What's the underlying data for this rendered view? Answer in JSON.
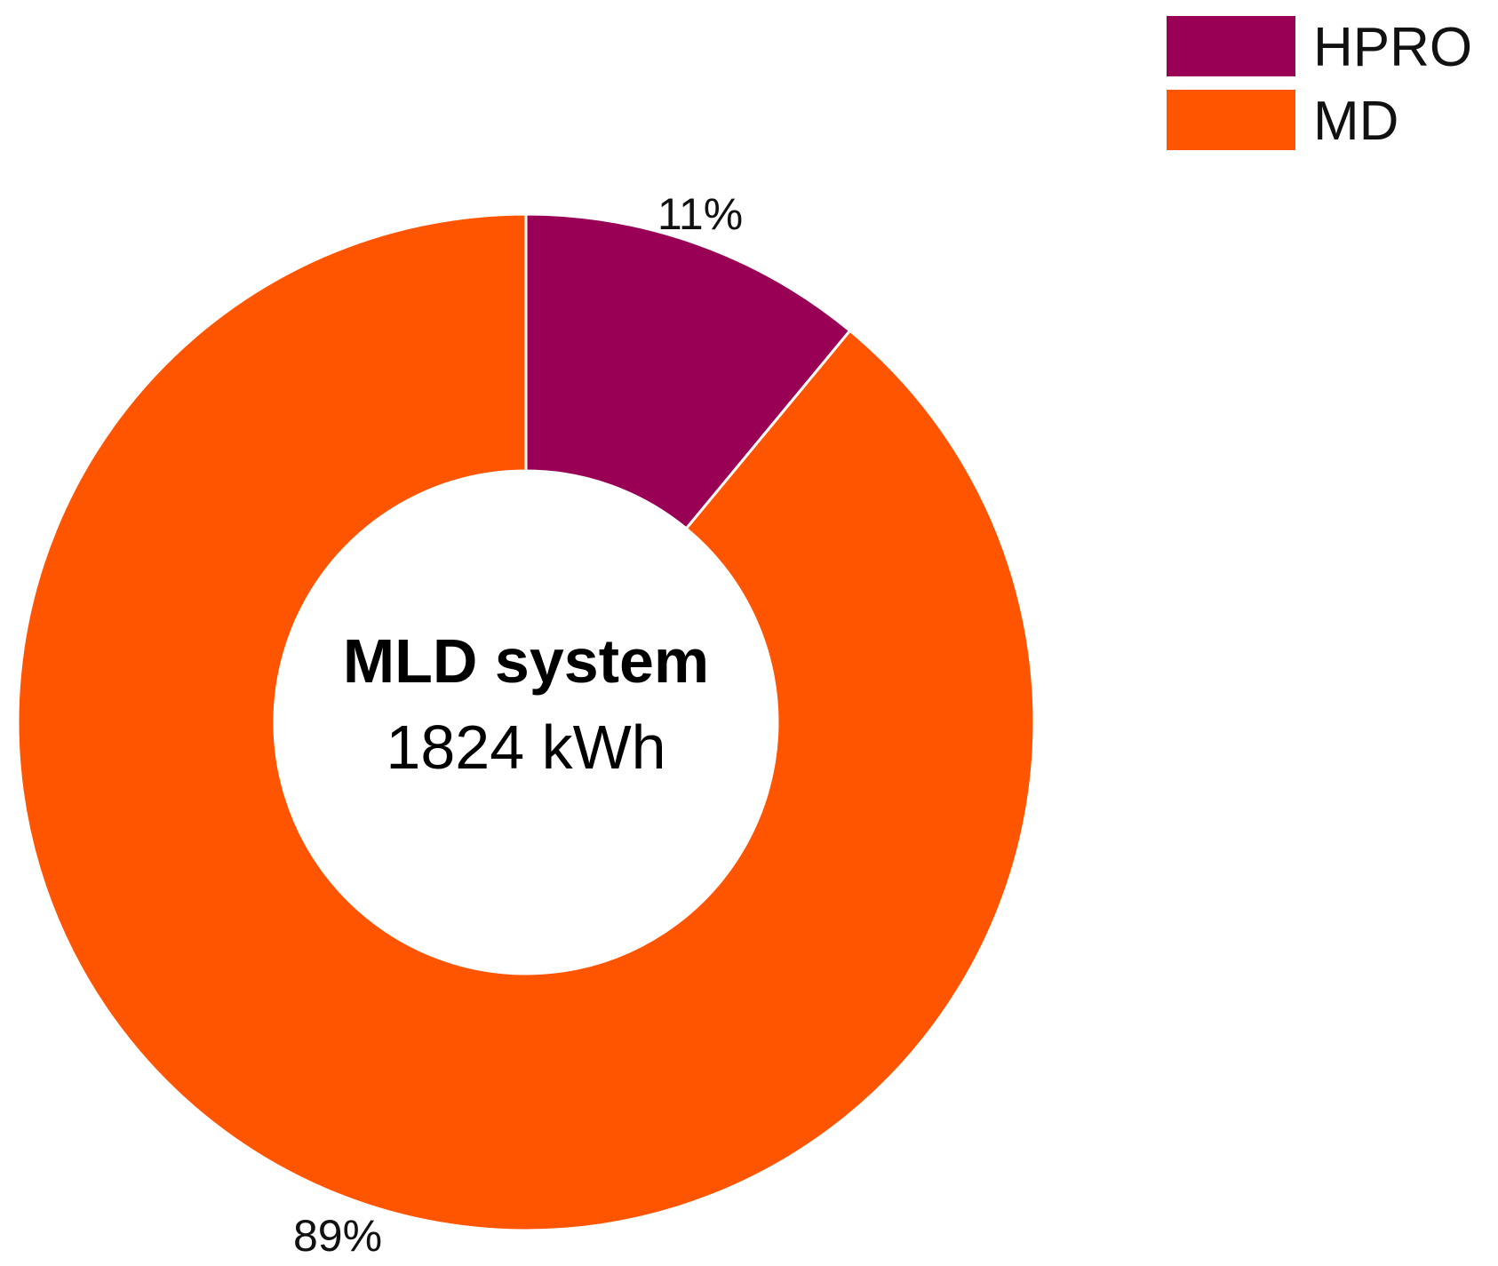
{
  "chart_data": {
    "type": "pie",
    "variant": "donut",
    "center": {
      "title": "MLD system",
      "subtitle": "1824 kWh"
    },
    "slices": [
      {
        "name": "HPRO",
        "value": 11,
        "label": "11%",
        "color": "#990055"
      },
      {
        "name": "MD",
        "value": 89,
        "label": "89%",
        "color": "#FF5500"
      }
    ],
    "legend": {
      "position": "top-right",
      "items": [
        {
          "label": "HPRO",
          "color": "#990055"
        },
        {
          "label": "MD",
          "color": "#FF5500"
        }
      ]
    }
  }
}
